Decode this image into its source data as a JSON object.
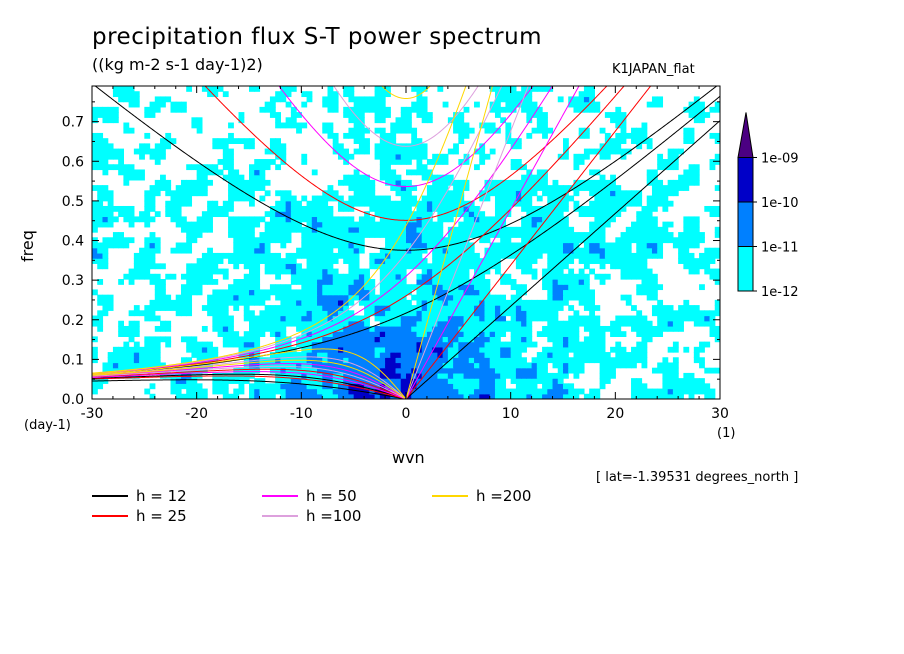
{
  "title": "precipitation flux S-T power spectrum",
  "units": "((kg m-2 s-1 day-1)2)",
  "dataset": "K1JAPAN_flat",
  "lat_note": "[ lat=-1.39531 degrees_north ]",
  "chart_data": {
    "type": "heatmap",
    "xlabel": "wvn",
    "ylabel": "freq",
    "x_units": "(1)",
    "y_units": "(day-1)",
    "xlim": [
      -30,
      30
    ],
    "ylim": [
      0,
      0.79
    ],
    "xticks": [
      -30,
      -20,
      -10,
      0,
      10,
      20,
      30
    ],
    "xtick_labels": [
      "-30",
      "-20",
      "-10",
      "0",
      "10",
      "20",
      "30"
    ],
    "yticks": [
      0,
      0.1,
      0.2,
      0.3,
      0.4,
      0.5,
      0.6,
      0.7
    ],
    "ytick_labels": [
      "0.0",
      "0.1",
      "0.2",
      "0.3",
      "0.4",
      "0.5",
      "0.6",
      "0.7"
    ],
    "color_levels": [
      1e-12,
      1e-11,
      1e-10,
      1e-09
    ],
    "colorbar_labels": [
      "1e-12",
      "1e-11",
      "1e-10",
      "1e-09"
    ],
    "colorbar_colors": [
      "#00ffff",
      "#0080ff",
      "#0000c8",
      "#4b0082"
    ],
    "dispersion_curves": [
      {
        "name": "h = 12",
        "h": 12,
        "color": "#000000"
      },
      {
        "name": "h = 25",
        "h": 25,
        "color": "#ff0000"
      },
      {
        "name": "h = 50",
        "h": 50,
        "color": "#ff00ff"
      },
      {
        "name": "h =100",
        "h": 100,
        "color": "#dda0dd"
      },
      {
        "name": "h =200",
        "h": 200,
        "color": "#ffd700"
      }
    ]
  }
}
